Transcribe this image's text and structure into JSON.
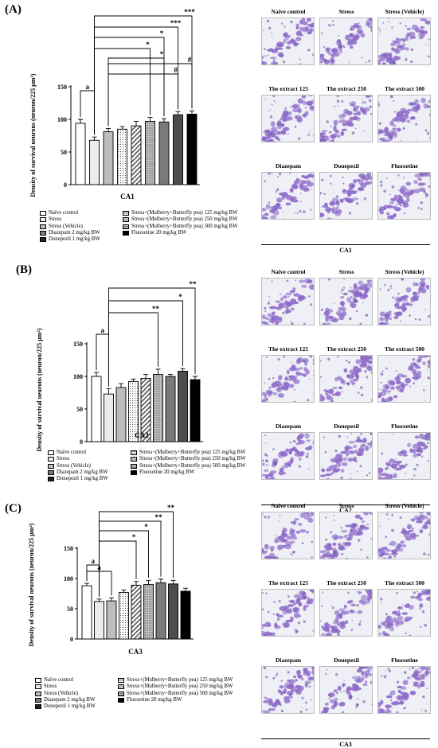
{
  "panels": [
    {
      "label": "(A)",
      "chart_data": {
        "type": "bar",
        "xlabel": "CA1",
        "ylabel": "Density of survival neurons (neuron/225 µm²)",
        "ylim": [
          0,
          150
        ],
        "yticks": [
          0,
          50,
          100,
          150
        ],
        "categories": [
          "Naïve control",
          "Stress",
          "Stress (Vehicle)",
          "Diazepam 2 mg/kg BW",
          "Donepezil 1 mg/kg BW",
          "Stress+(Mulberry+Butterfly pea) 125 mg/kg BW",
          "Stress+(Mulberry+Butterfly pea) 250 mg/kg BW",
          "Stress+(Mulberry+Butterfly pea) 500 mg/kg BW",
          "Fluoxetine 20 mg/kg BW"
        ],
        "values": [
          94,
          68,
          81,
          85,
          90,
          97,
          96,
          107,
          108
        ],
        "errors": [
          6,
          5,
          5,
          4,
          7,
          6,
          5,
          5,
          5
        ],
        "annotations": [
          "a",
          "***",
          "***",
          "*",
          "*",
          "*",
          "#",
          "#"
        ]
      },
      "micro_title": "CA1",
      "micro_labels": [
        "Naïve control",
        "Stress",
        "Stress (Vehicle)",
        "The extract 125",
        "The extract 250",
        "The extract 500",
        "Diazepam",
        "Donepezil",
        "Fluoxetine"
      ]
    },
    {
      "label": "(B)",
      "chart_data": {
        "type": "bar",
        "xlabel": "CA2",
        "ylabel": "Density of survival neurons (neuron/225 µm²)",
        "ylim": [
          0,
          150
        ],
        "yticks": [
          0,
          50,
          100,
          150
        ],
        "categories": [
          "Naïve control",
          "Stress",
          "Stress (Vehicle)",
          "Diazepam 2 mg/kg BW",
          "Donepezil 1 mg/kg BW",
          "Stress+(Mulberry+Butterfly pea) 125 mg/kg BW",
          "Stress+(Mulberry+Butterfly pea) 250 mg/kg BW",
          "Stress+(Mulberry+Butterfly pea) 500 mg/kg BW",
          "Fluoxetine 20 mg/kg BW"
        ],
        "values": [
          100,
          73,
          83,
          92,
          97,
          103,
          100,
          108,
          95
        ],
        "errors": [
          6,
          8,
          6,
          4,
          6,
          8,
          3,
          4,
          5
        ],
        "annotations": [
          "a",
          "**",
          "*",
          "**"
        ]
      },
      "micro_title": "CA2",
      "micro_labels": [
        "Naïve control",
        "Stress",
        "Stress (Vehicle)",
        "The extract 125",
        "The extract 250",
        "The extract 500",
        "Diazepam",
        "Donepezil",
        "Fluoxetine"
      ]
    },
    {
      "label": "(C)",
      "chart_data": {
        "type": "bar",
        "xlabel": "CA3",
        "ylabel": "Density of survival neurons (neuron/225 µm²)",
        "ylim": [
          0,
          150
        ],
        "yticks": [
          0,
          50,
          100,
          150
        ],
        "categories": [
          "Naïve control",
          "Stress",
          "Stress (Vehicle)",
          "Diazepam 2 mg/kg BW",
          "Donepezil 1 mg/kg BW",
          "Stress+(Mulberry+Butterfly pea) 125 mg/kg BW",
          "Stress+(Mulberry+Butterfly pea) 250 mg/kg BW",
          "Stress+(Mulberry+Butterfly pea) 500 mg/kg BW",
          "Fluoxetine 20 mg/kg BW"
        ],
        "values": [
          88,
          62,
          63,
          77,
          89,
          90,
          93,
          91,
          79
        ],
        "errors": [
          4,
          4,
          5,
          4,
          6,
          7,
          6,
          6,
          5
        ],
        "annotations": [
          "a",
          "a",
          "**",
          "**",
          "*",
          "*"
        ]
      },
      "micro_title": "CA3",
      "micro_labels": [
        "Naïve control",
        "Stress",
        "Stress (Vehicle)",
        "The extract 125",
        "The extract 250",
        "The extract 500",
        "Diazepam",
        "Donepezil",
        "Fluoxetine"
      ]
    }
  ],
  "colors": {
    "bar_stroke": "#000000",
    "micro_stain": "#8e6bc9",
    "micro_background": "#eef0f6"
  }
}
